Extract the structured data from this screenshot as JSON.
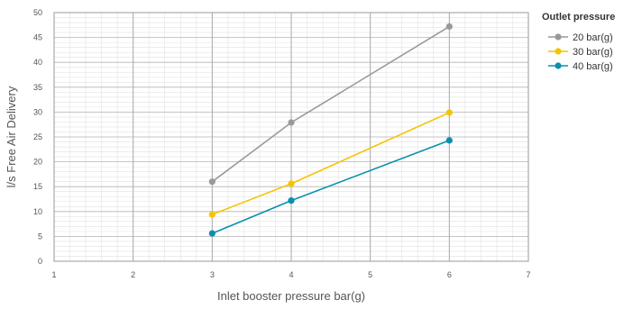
{
  "chart_data": {
    "type": "line",
    "title": "",
    "xlabel": "Inlet booster pressure bar(g)",
    "ylabel": "l/s Free Air Delivery",
    "xlim": [
      1,
      7
    ],
    "ylim": [
      0,
      50
    ],
    "x_ticks": [
      "1",
      "2",
      "3",
      "4",
      "5",
      "6",
      "7"
    ],
    "y_ticks": [
      "0",
      "5",
      "10",
      "15",
      "20",
      "25",
      "30",
      "35",
      "40",
      "45",
      "50"
    ],
    "grid": true,
    "legend": {
      "title": "Outlet pressure",
      "placement": "right"
    },
    "series": [
      {
        "name": "20 bar(g)",
        "color": "#999999",
        "points": [
          {
            "x": 3,
            "y": 16.0
          },
          {
            "x": 4,
            "y": 27.9
          },
          {
            "x": 6,
            "y": 47.2
          }
        ]
      },
      {
        "name": "30 bar(g)",
        "color": "#f5c400",
        "points": [
          {
            "x": 3,
            "y": 9.4
          },
          {
            "x": 4,
            "y": 15.6
          },
          {
            "x": 6,
            "y": 29.9
          }
        ]
      },
      {
        "name": "40 bar(g)",
        "color": "#0a8fae",
        "points": [
          {
            "x": 3,
            "y": 5.6
          },
          {
            "x": 4,
            "y": 12.2
          },
          {
            "x": 6,
            "y": 24.3
          }
        ]
      }
    ]
  }
}
